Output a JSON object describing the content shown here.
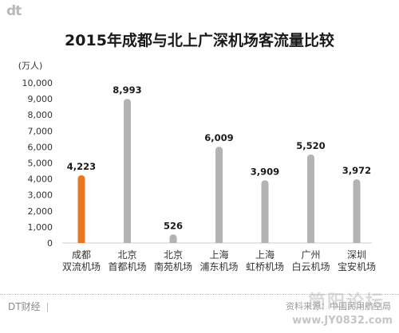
{
  "logo": "dt",
  "footer": {
    "brand": "DT财经",
    "source": "资料来源：中国民用航空局"
  },
  "watermark": {
    "main": "简阳论坛",
    "url": "www.JY0832.com"
  },
  "colors": {
    "highlight": "#e87722",
    "bar": "#b3b3b3",
    "text": "#222222",
    "axis": "#999999"
  },
  "chart_data": {
    "type": "bar",
    "title": "2015年成都与北上广深机场客流量比较",
    "unit_label": "(万人)",
    "ylim": [
      0,
      10000
    ],
    "yticks": [
      0,
      1000,
      2000,
      3000,
      4000,
      5000,
      6000,
      7000,
      8000,
      9000,
      10000
    ],
    "ytick_labels": [
      "0",
      "1,000",
      "2,000",
      "3,000",
      "4,000",
      "5,000",
      "6,000",
      "7,000",
      "8,000",
      "9,000",
      "10,000"
    ],
    "grid": false,
    "legend": "none",
    "categories": [
      [
        "成都",
        "双流机场"
      ],
      [
        "北京",
        "首都机场"
      ],
      [
        "北京",
        "南苑机场"
      ],
      [
        "上海",
        "浦东机场"
      ],
      [
        "上海",
        "虹桥机场"
      ],
      [
        "广州",
        "白云机场"
      ],
      [
        "深圳",
        "宝安机场"
      ]
    ],
    "values": [
      4223,
      8993,
      526,
      6009,
      3909,
      5520,
      3972
    ],
    "value_labels": [
      "4,223",
      "8,993",
      "526",
      "6,009",
      "3,909",
      "5,520",
      "3,972"
    ],
    "highlight_index": 0
  }
}
